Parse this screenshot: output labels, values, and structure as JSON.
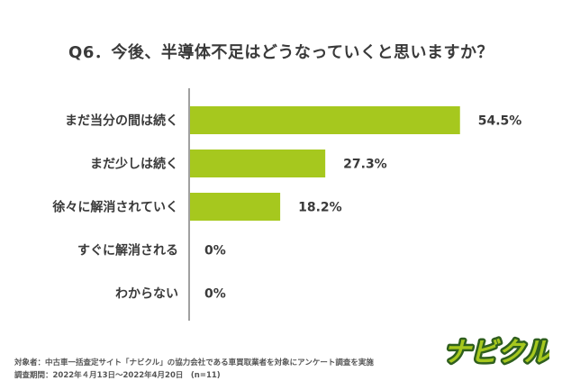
{
  "title": "Q6．今後、半導体不足はどうなっていくと思いますか？",
  "chart_data": {
    "type": "bar",
    "orientation": "horizontal",
    "categories": [
      "まだ当分の間は続く",
      "まだ少しは続く",
      "徐々に解消されていく",
      "すぐに解消される",
      "わからない"
    ],
    "values": [
      54.5,
      27.3,
      18.2,
      0,
      0
    ],
    "value_labels": [
      "54.5%",
      "27.3%",
      "18.2%",
      "0%",
      "0%"
    ],
    "xlim": [
      0,
      100
    ],
    "bar_color": "#a6c81e",
    "grid": false
  },
  "footer": {
    "line1": "対象者：中古車一括査定サイト「ナビクル」の協力会社である車買取業者を対象にアンケート調査を実施",
    "line2": "調査期間：2022年４月13日〜2022年4月20日　(n=11)"
  },
  "logo": {
    "text": "ナビクル",
    "fill": "#a6c81e",
    "stroke": "#2f5f1e"
  }
}
